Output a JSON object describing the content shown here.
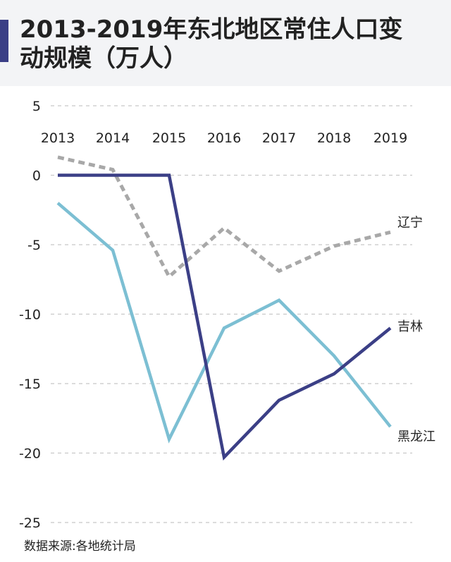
{
  "title": "2013-2019年东北地区常住人口变动规模（万人）",
  "source": "数据来源:各地统计局",
  "chart_data": {
    "type": "line",
    "title": "2013-2019年东北地区常住人口变动规模（万人）",
    "x": [
      "2013",
      "2014",
      "2015",
      "2016",
      "2017",
      "2018",
      "2019"
    ],
    "ylim": [
      -25,
      5
    ],
    "yticks": [
      "5",
      "0",
      "-5",
      "-10",
      "-15",
      "-20",
      "-25"
    ],
    "grid": true,
    "series": [
      {
        "name": "辽宁",
        "values": [
          1.3,
          0.4,
          -7.3,
          -3.8,
          -6.9,
          -5.1,
          -4.1
        ],
        "color": "#a8a8a8",
        "style": "dashed"
      },
      {
        "name": "吉林",
        "values": [
          0.0,
          0.0,
          0.0,
          -20.3,
          -16.2,
          -14.3,
          -11.0
        ],
        "color": "#3b3f86",
        "style": "solid"
      },
      {
        "name": "黑龙江",
        "values": [
          -2.0,
          -5.4,
          -19.0,
          -11.0,
          -9.0,
          -13.0,
          -18.1
        ],
        "color": "#7cbfd3",
        "style": "solid"
      }
    ]
  }
}
